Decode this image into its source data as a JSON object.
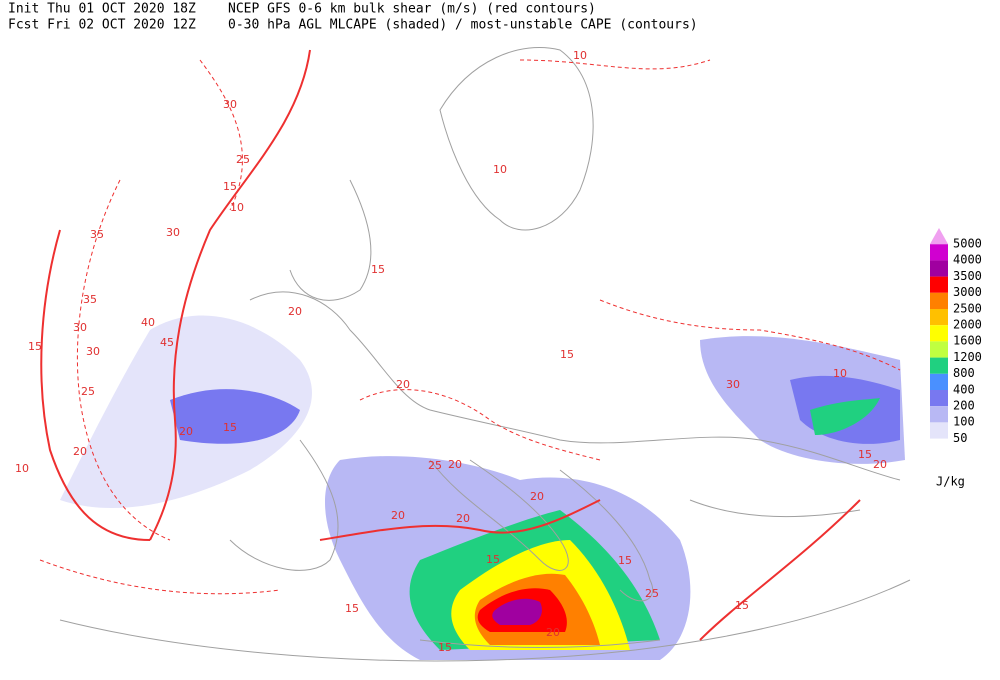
{
  "header": {
    "init": "Init  Thu 01 OCT 2020 18Z",
    "fcst": "Fcst Fri 02 OCT 2020 12Z",
    "line1": "NCEP GFS 0-6 km bulk shear (m/s) (red contours)",
    "line2": "0-30 hPa AGL MLCAPE (shaded) / most-unstable CAPE (contours)"
  },
  "legend": {
    "levels": [
      5000,
      4000,
      3500,
      3000,
      2500,
      2000,
      1600,
      1200,
      800,
      400,
      200,
      100,
      50
    ],
    "colors": [
      "#f0a0f0",
      "#d000d0",
      "#a000a0",
      "#ff0000",
      "#ff8000",
      "#ffc000",
      "#ffff00",
      "#c0ff40",
      "#20d080",
      "#4a90ff",
      "#7878f0",
      "#b8b8f4",
      "#e4e4fa"
    ],
    "unit": "J/kg"
  },
  "contour_labels": [
    30,
    25,
    15,
    10,
    35,
    30,
    35,
    40,
    30,
    45,
    15,
    30,
    25,
    20,
    10,
    15,
    20,
    20,
    20,
    20,
    25,
    20,
    20,
    20,
    15,
    15,
    20,
    15,
    15,
    25,
    15,
    10,
    15,
    20,
    10,
    10,
    15,
    15,
    30
  ]
}
